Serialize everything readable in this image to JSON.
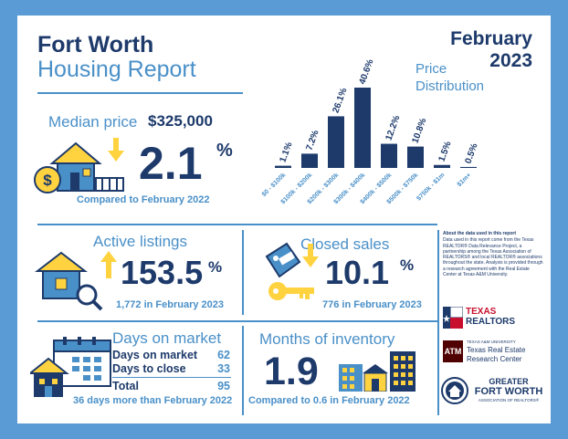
{
  "header": {
    "title_city": "Fort Worth",
    "title_report": "Housing Report",
    "month": "February",
    "year": "2023"
  },
  "median": {
    "label": "Median price",
    "value": "$325,000",
    "change": "2.1",
    "unit": "%",
    "compare": "Compared to February 2022",
    "icon": "house-dollar-down-arrow-icon"
  },
  "active": {
    "label": "Active listings",
    "change": "153.5",
    "unit": "%",
    "sub": "1,772 in February 2023",
    "icon": "house-magnifier-up-arrow-icon"
  },
  "closed": {
    "label": "Closed sales",
    "change": "10.1",
    "unit": "%",
    "sub": "776 in February 2023",
    "icon": "key-tag-down-arrow-icon"
  },
  "dom": {
    "label": "Days on market",
    "rows": [
      {
        "label": "Days on market",
        "value": "62"
      },
      {
        "label": "Days to close",
        "value": "33"
      }
    ],
    "total_label": "Total",
    "total_value": "95",
    "sub": "36 days more than February 2022",
    "icon": "calendar-house-icon"
  },
  "moi": {
    "label": "Months of inventory",
    "value": "1.9",
    "sub": "Compared to 0.6 in February 2022",
    "icon": "city-buildings-icon"
  },
  "about": {
    "heading": "About the data used in this report",
    "body": "Data used in this report come from the Texas REALTOR® Data Relevance Project, a partnership among the Texas Association of REALTORS® and local REALTOR® associations throughout the state. Analysis is provided through a research agreement with the Real Estate Center at Texas A&M University."
  },
  "logos": {
    "texas_realtors": {
      "line1": "TEXAS",
      "line2": "REALTORS"
    },
    "tamu": {
      "mark": "ATM",
      "line1": "TEXAS A&M UNIVERSITY",
      "line2": "Texas Real Estate",
      "line3": "Research Center"
    },
    "gfw": {
      "line1": "GREATER",
      "line2": "FORT WORTH",
      "line3": "ASSOCIATION OF REALTORS®"
    }
  },
  "chart_data": {
    "type": "bar",
    "title": "Price Distribution",
    "title_line1": "Price",
    "title_line2": "Distribution",
    "categories": [
      "$0 - $100k",
      "$100k - $200k",
      "$200k - $300k",
      "$300k - $400k",
      "$400k - $500k",
      "$500k - $750k",
      "$750k - $1m",
      "$1m+"
    ],
    "values": [
      1.1,
      7.2,
      26.1,
      40.6,
      12.2,
      10.8,
      1.5,
      0.5
    ],
    "value_labels": [
      "1.1%",
      "7.2%",
      "26.1%",
      "40.6%",
      "12.2%",
      "10.8%",
      "1.5%",
      "0.5%"
    ],
    "ylim": [
      0,
      40.6
    ],
    "grid": false,
    "bar_color": "#1d3a6b"
  }
}
